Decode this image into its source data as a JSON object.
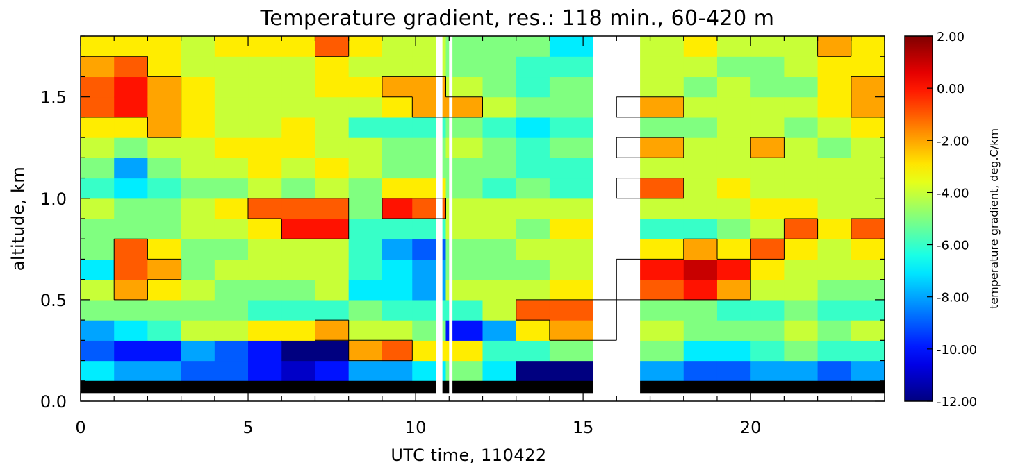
{
  "chart_data": {
    "type": "heatmap",
    "title": "Temperature gradient, res.: 118 min.,  60-420 m",
    "xlabel": "UTC time, 110422",
    "ylabel": "altitude, km",
    "xlim": [
      0,
      24
    ],
    "ylim": [
      0,
      1.8
    ],
    "x_ticks": [
      0,
      5,
      10,
      15,
      20
    ],
    "x_tick_labels": [
      "0",
      "5",
      "10",
      "15",
      "20"
    ],
    "y_ticks": [
      0.0,
      0.5,
      1.0,
      1.5
    ],
    "y_tick_labels": [
      "0.0",
      "0.5",
      "1.0",
      "1.5"
    ],
    "colorbar": {
      "title": "temperature gradient, deg.C/km",
      "range": [
        -12,
        2
      ],
      "ticks": [
        2,
        0,
        -2,
        -4,
        -6,
        -8,
        -10,
        -12
      ],
      "tick_labels": [
        "2.00",
        "0.00",
        "-2.00",
        "-4.00",
        "-6.00",
        "-8.00",
        "-10.00",
        "-12.00"
      ],
      "colormap": "jet"
    },
    "data_gaps_hours": [
      [
        10.6,
        10.8
      ],
      [
        11.0,
        11.1
      ],
      [
        15.3,
        16.7
      ]
    ],
    "masked_bottom_km": [
      0.04,
      0.1
    ],
    "times": [
      0.5,
      1.5,
      2.5,
      3.5,
      4.5,
      5.5,
      6.5,
      7.5,
      8.5,
      9.5,
      10.3,
      11.5,
      12.5,
      13.5,
      14.5,
      17.5,
      18.5,
      19.5,
      20.5,
      21.5,
      22.5,
      23.5
    ],
    "altitudes": [
      0.15,
      0.25,
      0.35,
      0.45,
      0.55,
      0.65,
      0.75,
      0.85,
      0.95,
      1.05,
      1.15,
      1.25,
      1.35,
      1.45,
      1.55,
      1.65,
      1.75
    ],
    "values": [
      [
        -7,
        -9,
        -8,
        -5,
        -4,
        -7,
        -5,
        -5,
        -4,
        -6,
        -5,
        -4,
        -3,
        -1,
        -1,
        -2,
        -3
      ],
      [
        -8,
        -10,
        -7,
        -5,
        -2,
        -1,
        -1,
        -5,
        -5,
        -7,
        -8,
        -5,
        -3,
        0,
        0,
        -1,
        -3
      ],
      [
        -8,
        -10,
        -6,
        -5,
        -3,
        -2,
        -3,
        -5,
        -5,
        -6,
        -5,
        -4,
        -2,
        -2,
        -2,
        -3,
        -3
      ],
      [
        -9,
        -8,
        -4,
        -5,
        -4,
        -5,
        -5,
        -4,
        -4,
        -5,
        -4,
        -4,
        -3,
        -3,
        -3,
        -4,
        -4
      ],
      [
        -9,
        -9,
        -4,
        -5,
        -5,
        -4,
        -5,
        -4,
        -3,
        -5,
        -4,
        -3,
        -4,
        -4,
        -4,
        -4,
        -3
      ],
      [
        -10,
        -10,
        -3,
        -6,
        -5,
        -4,
        -4,
        -3,
        -1,
        -4,
        -3,
        -3,
        -4,
        -4,
        -4,
        -4,
        -3
      ],
      [
        -11,
        -12,
        -3,
        -6,
        -5,
        -4,
        -4,
        0,
        -1,
        -5,
        -4,
        -3,
        -3,
        -4,
        -4,
        -4,
        -3
      ],
      [
        -10,
        -12,
        -2,
        -6,
        -4,
        -4,
        -4,
        0,
        -1,
        -4,
        -3,
        -4,
        -4,
        -4,
        -3,
        -3,
        -1
      ],
      [
        -8,
        -2,
        -4,
        -5,
        -7,
        -6,
        -6,
        -6,
        -5,
        -5,
        -4,
        -4,
        -6,
        -4,
        -3,
        -4,
        -3
      ],
      [
        -8,
        -1,
        -4,
        -6,
        -7,
        -7,
        -8,
        -6,
        0,
        -3,
        -5,
        -5,
        -6,
        -3,
        -2,
        -4,
        -4
      ],
      [
        -7,
        -3,
        -5,
        -6,
        -8,
        -8,
        -9,
        -6,
        -1,
        -3,
        -5,
        -5,
        -6,
        -2,
        -2,
        -4,
        -4
      ],
      [
        -5,
        -3,
        -10,
        -6,
        -4,
        -5,
        -5,
        -4,
        -4,
        -5,
        -5,
        -4,
        -5,
        -2,
        -4,
        -5,
        -5
      ],
      [
        -7,
        -6,
        -8,
        -4,
        -4,
        -5,
        -5,
        -4,
        -4,
        -6,
        -5,
        -5,
        -6,
        -4,
        -5,
        -5,
        -5
      ],
      [
        -12,
        -6,
        -3,
        -1,
        -4,
        -5,
        -4,
        -5,
        -4,
        -5,
        -6,
        -6,
        -7,
        -5,
        -6,
        -6,
        -5
      ],
      [
        -12,
        -5,
        -2,
        -1,
        -3,
        -4,
        -4,
        -3,
        -4,
        -6,
        -6,
        -5,
        -6,
        -5,
        -5,
        -6,
        -7
      ],
      [
        -8,
        -5,
        -4,
        -5,
        -1,
        0,
        -3,
        -6,
        -4,
        -1,
        -4,
        -2,
        -5,
        -2,
        -4,
        -4,
        -4
      ],
      [
        -9,
        -7,
        -5,
        -5,
        0,
        1,
        -2,
        -6,
        -4,
        -4,
        -4,
        -4,
        -5,
        -4,
        -5,
        -4,
        -3
      ],
      [
        -9,
        -7,
        -5,
        -6,
        -2,
        0,
        -3,
        -5,
        -4,
        -3,
        -4,
        -4,
        -4,
        -4,
        -4,
        -5,
        -4
      ],
      [
        -8,
        -6,
        -5,
        -6,
        -4,
        -3,
        -1,
        -4,
        -3,
        -4,
        -4,
        -2,
        -4,
        -4,
        -5,
        -5,
        -4
      ],
      [
        -8,
        -5,
        -4,
        -5,
        -4,
        -4,
        -3,
        -1,
        -3,
        -4,
        -4,
        -4,
        -5,
        -4,
        -5,
        -4,
        -4
      ],
      [
        -9,
        -6,
        -5,
        -6,
        -5,
        -4,
        -4,
        -3,
        -4,
        -4,
        -4,
        -5,
        -4,
        -3,
        -3,
        -3,
        -2
      ],
      [
        -8,
        -6,
        -4,
        -6,
        -5,
        -4,
        -3,
        -1,
        -4,
        -4,
        -4,
        -4,
        -3,
        -2,
        -2,
        -3,
        -3
      ]
    ]
  }
}
